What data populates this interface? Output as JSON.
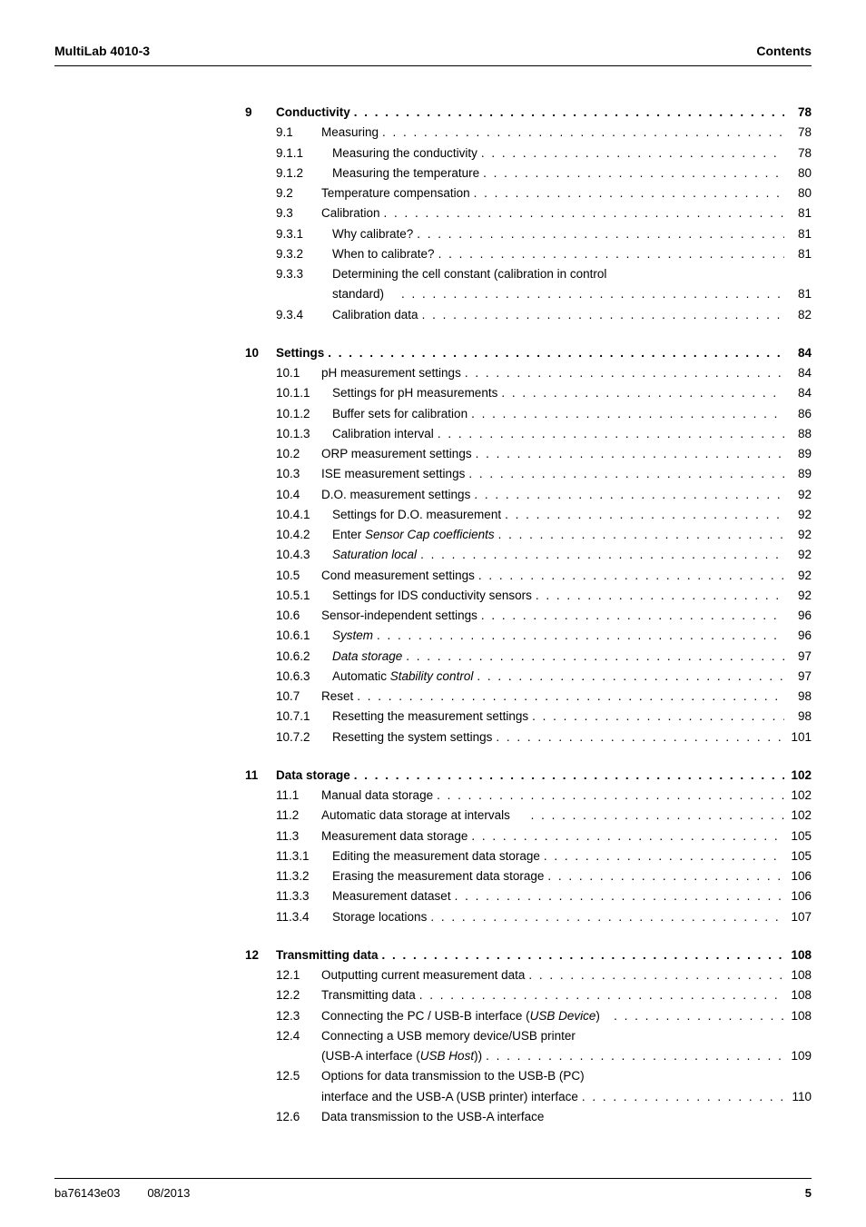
{
  "header": {
    "left": "MultiLab 4010-3",
    "right": "Contents"
  },
  "footer": {
    "doc_id": "ba76143e03",
    "date": "08/2013",
    "page": "5"
  },
  "dots_str": ". . . . . . . . . . . . . . . . . . . . . . . . . . . . . . . . . . . . . . . . . . . . . . . . . . . . . . . . . . . . . . . . . . . . . . . . . . . . . . . . . . . . . . . . . .",
  "toc": [
    {
      "entries": [
        {
          "level": 0,
          "num": "9",
          "text": "Conductivity",
          "page": "78",
          "bold": true
        },
        {
          "level": 1,
          "num": "9.1",
          "text": "Measuring",
          "page": "78"
        },
        {
          "level": 2,
          "num": "9.1.1",
          "text": "Measuring the conductivity",
          "page": "78"
        },
        {
          "level": 2,
          "num": "9.1.2",
          "text": "Measuring the temperature",
          "page": "80"
        },
        {
          "level": 1,
          "num": "9.2",
          "text": "Temperature compensation",
          "page": "80"
        },
        {
          "level": 1,
          "num": "9.3",
          "text": "Calibration",
          "page": "81"
        },
        {
          "level": 2,
          "num": "9.3.1",
          "text": "Why calibrate?",
          "page": "81"
        },
        {
          "level": 2,
          "num": "9.3.2",
          "text": "When to calibrate?",
          "page": "81"
        },
        {
          "level": 2,
          "num": "9.3.3",
          "text": "Determining the cell constant (calibration in control",
          "page": "",
          "nowrap": true
        },
        {
          "level": "cont",
          "num": "",
          "text": "standard)    ",
          "page": "81"
        },
        {
          "level": 2,
          "num": "9.3.4",
          "text": "Calibration data",
          "page": "82"
        }
      ]
    },
    {
      "entries": [
        {
          "level": 0,
          "num": "10",
          "text": "Settings",
          "page": "84",
          "bold": true
        },
        {
          "level": 1,
          "num": "10.1",
          "text": "pH measurement settings",
          "page": "84"
        },
        {
          "level": 2,
          "num": "10.1.1",
          "text": "Settings for pH measurements",
          "page": "84"
        },
        {
          "level": 2,
          "num": "10.1.2",
          "text": "Buffer sets for calibration",
          "page": "86"
        },
        {
          "level": 2,
          "num": "10.1.3",
          "text": "Calibration interval",
          "page": "88"
        },
        {
          "level": 1,
          "num": "10.2",
          "text": "ORP measurement settings",
          "page": "89"
        },
        {
          "level": 1,
          "num": "10.3",
          "text": "ISE measurement settings",
          "page": "89"
        },
        {
          "level": 1,
          "num": "10.4",
          "text": "D.O. measurement settings",
          "page": "92"
        },
        {
          "level": 2,
          "num": "10.4.1",
          "text": "Settings for D.O. measurement",
          "page": "92"
        },
        {
          "level": 2,
          "num": "10.4.2",
          "text": "Enter ",
          "text_italic": "Sensor Cap coefficients",
          "page": "92"
        },
        {
          "level": 2,
          "num": "10.4.3",
          "text": "",
          "text_italic": "Saturation local",
          "page": "92"
        },
        {
          "level": 1,
          "num": "10.5",
          "text": "Cond measurement settings",
          "page": "92"
        },
        {
          "level": 2,
          "num": "10.5.1",
          "text": "Settings for IDS conductivity sensors",
          "page": "92"
        },
        {
          "level": 1,
          "num": "10.6",
          "text": "Sensor-independent settings",
          "page": "96"
        },
        {
          "level": 2,
          "num": "10.6.1",
          "text": "",
          "text_italic": "System",
          "page": "96"
        },
        {
          "level": 2,
          "num": "10.6.2",
          "text": "",
          "text_italic": "Data storage",
          "page": "97"
        },
        {
          "level": 2,
          "num": "10.6.3",
          "text": "Automatic ",
          "text_italic": "Stability control",
          "page": "97"
        },
        {
          "level": 1,
          "num": "10.7",
          "text": "Reset",
          "page": "98"
        },
        {
          "level": 2,
          "num": "10.7.1",
          "text": "Resetting the measurement settings",
          "page": "98"
        },
        {
          "level": 2,
          "num": "10.7.2",
          "text": "Resetting the system settings",
          "page": "101"
        }
      ]
    },
    {
      "entries": [
        {
          "level": 0,
          "num": "11",
          "text": "Data storage",
          "page": "102",
          "bold": true
        },
        {
          "level": 1,
          "num": "11.1",
          "text": "Manual data storage",
          "page": "102"
        },
        {
          "level": 1,
          "num": "11.2",
          "text": "Automatic data storage at intervals     ",
          "page": "102"
        },
        {
          "level": 1,
          "num": "11.3",
          "text": "Measurement data storage",
          "page": "105"
        },
        {
          "level": 2,
          "num": "11.3.1",
          "text": "Editing the measurement data storage",
          "page": "105"
        },
        {
          "level": 2,
          "num": "11.3.2",
          "text": "Erasing the measurement data storage",
          "page": "106"
        },
        {
          "level": 2,
          "num": "11.3.3",
          "text": "Measurement dataset",
          "page": "106"
        },
        {
          "level": 2,
          "num": "11.3.4",
          "text": "Storage locations",
          "page": "107"
        }
      ]
    },
    {
      "entries": [
        {
          "level": 0,
          "num": "12",
          "text": "Transmitting data",
          "page": "108",
          "bold": true
        },
        {
          "level": 1,
          "num": "12.1",
          "text": "Outputting current measurement data",
          "page": "108"
        },
        {
          "level": 1,
          "num": "12.2",
          "text": "Transmitting data",
          "page": "108"
        },
        {
          "level": 1,
          "num": "12.3",
          "text": "Connecting the PC / USB-B interface (",
          "text_italic": "USB Device",
          "text_after": ")   ",
          "page": "108"
        },
        {
          "level": 1,
          "num": "12.4",
          "text": "Connecting a USB memory device/USB printer",
          "page": "",
          "nowrap": true
        },
        {
          "level": "cont1",
          "num": "",
          "text": "(USB-A interface (",
          "text_italic": "USB Host",
          "text_after": "))",
          "page": "109"
        },
        {
          "level": 1,
          "num": "12.5",
          "text": "Options for data transmission to the USB-B (PC)",
          "page": "",
          "nowrap": true
        },
        {
          "level": "cont1",
          "num": "",
          "text": "interface and the USB-A (USB printer) interface",
          "page": "110"
        },
        {
          "level": 1,
          "num": "12.6",
          "text": "Data transmission to the USB-A interface",
          "page": "",
          "nowrap": true
        }
      ]
    }
  ]
}
